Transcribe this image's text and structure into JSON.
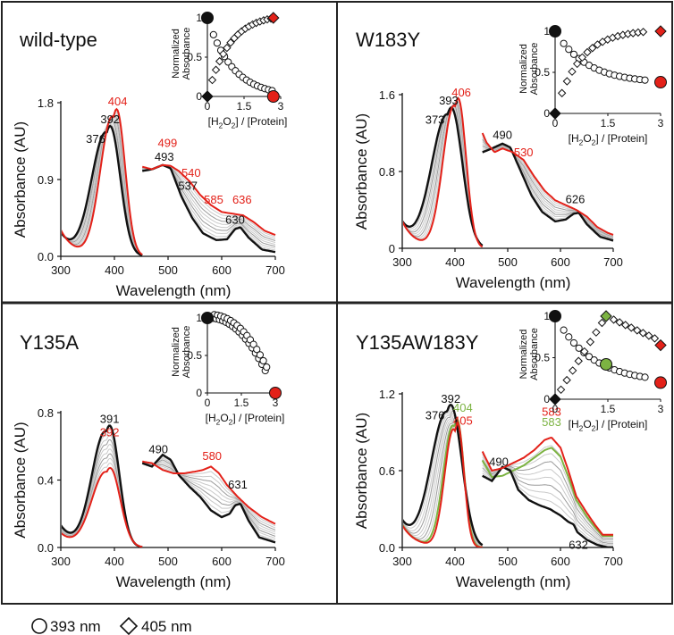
{
  "figure": {
    "legend": {
      "circle_label": "393 nm",
      "diamond_label": "405 nm"
    }
  },
  "colors": {
    "final": "#e32119",
    "initial": "#111111",
    "grey": "#9a9a9a",
    "light": "#c9c9c9",
    "green": "#7cb342"
  },
  "chart_data": [
    {
      "id": "wt",
      "title": "wild-type",
      "type": "line",
      "ylabel": "Absorbance (AU)",
      "xlabel": "Wavelength (nm)",
      "xlim": [
        300,
        700
      ],
      "ylim": [
        0,
        1.8
      ],
      "xticks": [
        "300",
        "400",
        "500",
        "600",
        "700"
      ],
      "yticks": [
        "0.0",
        "0.9",
        "1.8"
      ],
      "soret_initial": {
        "peak": 392,
        "height": 1.52,
        "width": 19,
        "shoulder": 376
      },
      "soret_final": {
        "peak": 404,
        "height": 1.72,
        "width": 16
      },
      "visible_initial": [
        [
          452,
          1.0
        ],
        [
          470,
          1.02
        ],
        [
          490,
          1.07
        ],
        [
          505,
          1.03
        ],
        [
          525,
          0.7
        ],
        [
          545,
          0.45
        ],
        [
          565,
          0.27
        ],
        [
          590,
          0.19
        ],
        [
          610,
          0.2
        ],
        [
          625,
          0.32
        ],
        [
          635,
          0.34
        ],
        [
          650,
          0.22
        ],
        [
          675,
          0.08
        ],
        [
          700,
          0.05
        ]
      ],
      "visible_final": [
        [
          452,
          1.05
        ],
        [
          470,
          1.02
        ],
        [
          490,
          1.07
        ],
        [
          505,
          1.06
        ],
        [
          520,
          1.0
        ],
        [
          540,
          0.88
        ],
        [
          560,
          0.72
        ],
        [
          580,
          0.6
        ],
        [
          600,
          0.52
        ],
        [
          620,
          0.5
        ],
        [
          640,
          0.48
        ],
        [
          660,
          0.4
        ],
        [
          680,
          0.3
        ],
        [
          700,
          0.25
        ]
      ],
      "labels_black": [
        {
          "text": "392",
          "x": 392,
          "y": 1.56
        },
        {
          "text": "376",
          "x": 365,
          "y": 1.33
        },
        {
          "text": "493",
          "x": 493,
          "y": 1.12
        },
        {
          "text": "537",
          "x": 537,
          "y": 0.78
        },
        {
          "text": "630",
          "x": 625,
          "y": 0.38
        }
      ],
      "labels_red": [
        {
          "text": "404",
          "x": 406,
          "y": 1.77
        },
        {
          "text": "499",
          "x": 499,
          "y": 1.28
        },
        {
          "text": "540",
          "x": 543,
          "y": 0.93
        },
        {
          "text": "585",
          "x": 585,
          "y": 0.62
        },
        {
          "text": "636",
          "x": 638,
          "y": 0.62
        }
      ],
      "inset": {
        "xlabel": "[H2O2] / [Protein]",
        "ylabel": "Normalized Absorbance",
        "xlim": [
          0,
          3
        ],
        "ylim": [
          0,
          1
        ],
        "xticks": [
          "0",
          "1.5",
          "3"
        ],
        "yticks": [
          "0",
          "0.5",
          "1"
        ],
        "circle_decay": {
          "k": 0.9,
          "end": 0.0
        },
        "diamond_rise": {
          "k": 0.9,
          "end": 1.0
        },
        "points_max": 2.7,
        "circle_start": [
          0,
          1.0
        ],
        "circle_end": [
          2.7,
          0.0
        ],
        "diamond_start": [
          0,
          0.0
        ],
        "diamond_end": [
          2.7,
          1.0
        ]
      }
    },
    {
      "id": "w183y",
      "title": "W183Y",
      "type": "line",
      "ylabel": "Absorbance (AU)",
      "xlabel": "Wavelength (nm)",
      "xlim": [
        300,
        700
      ],
      "ylim": [
        0,
        1.6
      ],
      "xticks": [
        "300",
        "400",
        "500",
        "600",
        "700"
      ],
      "yticks": [
        "0",
        "0.8",
        "1.6"
      ],
      "soret_initial": {
        "peak": 393,
        "height": 1.46,
        "width": 21,
        "shoulder": 373
      },
      "soret_final": {
        "peak": 406,
        "height": 1.56,
        "width": 15
      },
      "visible_initial": [
        [
          452,
          1.0
        ],
        [
          470,
          1.04
        ],
        [
          490,
          1.09
        ],
        [
          505,
          1.05
        ],
        [
          525,
          0.8
        ],
        [
          545,
          0.55
        ],
        [
          565,
          0.38
        ],
        [
          590,
          0.28
        ],
        [
          610,
          0.3
        ],
        [
          625,
          0.36
        ],
        [
          635,
          0.37
        ],
        [
          650,
          0.25
        ],
        [
          675,
          0.12
        ],
        [
          700,
          0.08
        ]
      ],
      "visible_final": [
        [
          452,
          1.2
        ],
        [
          460,
          1.1
        ],
        [
          475,
          1.0
        ],
        [
          490,
          1.04
        ],
        [
          510,
          1.0
        ],
        [
          530,
          0.92
        ],
        [
          550,
          0.75
        ],
        [
          570,
          0.6
        ],
        [
          590,
          0.5
        ],
        [
          610,
          0.45
        ],
        [
          630,
          0.4
        ],
        [
          650,
          0.33
        ],
        [
          670,
          0.22
        ],
        [
          690,
          0.16
        ],
        [
          700,
          0.14
        ]
      ],
      "labels_black": [
        {
          "text": "393",
          "x": 388,
          "y": 1.5
        },
        {
          "text": "373",
          "x": 362,
          "y": 1.3
        },
        {
          "text": "490",
          "x": 490,
          "y": 1.14
        },
        {
          "text": "626",
          "x": 628,
          "y": 0.47
        }
      ],
      "labels_red": [
        {
          "text": "406",
          "x": 412,
          "y": 1.58
        },
        {
          "text": "530",
          "x": 530,
          "y": 0.96
        }
      ],
      "inset": {
        "xlabel": "[H2O2] / [Protein]",
        "ylabel": "Normalized Absorbance",
        "xlim": [
          0,
          3
        ],
        "ylim": [
          0,
          1
        ],
        "xticks": [
          "0",
          "1.5",
          "3"
        ],
        "yticks": [
          "0",
          "0.5",
          "1"
        ],
        "circle_decay": {
          "k": 0.8,
          "end": 0.37
        },
        "diamond_rise": {
          "k": 0.7,
          "end": 1.0
        },
        "points_max": 2.6,
        "circle_start": [
          0,
          1.0
        ],
        "circle_end": [
          3.0,
          0.38
        ],
        "diamond_start": [
          0,
          0.0
        ],
        "diamond_end": [
          3.0,
          1.0
        ]
      }
    },
    {
      "id": "y135a",
      "title": "Y135A",
      "type": "line",
      "ylabel": "Absorbance (AU)",
      "xlabel": "Wavelength (nm)",
      "xlim": [
        300,
        700
      ],
      "ylim": [
        0,
        0.8
      ],
      "xticks": [
        "300",
        "400",
        "500",
        "600",
        "700"
      ],
      "yticks": [
        "0.0",
        "0.4",
        "0.8"
      ],
      "soret_initial": {
        "peak": 391,
        "height": 0.72,
        "width": 18,
        "shoulder": 0
      },
      "soret_final": {
        "peak": 392,
        "height": 0.47,
        "width": 19
      },
      "visible_initial": [
        [
          452,
          0.5
        ],
        [
          470,
          0.48
        ],
        [
          490,
          0.55
        ],
        [
          505,
          0.52
        ],
        [
          520,
          0.43
        ],
        [
          540,
          0.36
        ],
        [
          560,
          0.3
        ],
        [
          580,
          0.22
        ],
        [
          600,
          0.18
        ],
        [
          615,
          0.2
        ],
        [
          625,
          0.25
        ],
        [
          635,
          0.26
        ],
        [
          650,
          0.16
        ],
        [
          670,
          0.06
        ],
        [
          700,
          0.03
        ]
      ],
      "visible_final": [
        [
          452,
          0.51
        ],
        [
          470,
          0.5
        ],
        [
          490,
          0.46
        ],
        [
          510,
          0.44
        ],
        [
          530,
          0.44
        ],
        [
          550,
          0.45
        ],
        [
          565,
          0.46
        ],
        [
          580,
          0.48
        ],
        [
          595,
          0.44
        ],
        [
          610,
          0.37
        ],
        [
          630,
          0.3
        ],
        [
          650,
          0.24
        ],
        [
          675,
          0.18
        ],
        [
          700,
          0.14
        ]
      ],
      "labels_black": [
        {
          "text": "391",
          "x": 391,
          "y": 0.74
        },
        {
          "text": "490",
          "x": 482,
          "y": 0.56
        },
        {
          "text": "631",
          "x": 630,
          "y": 0.35
        }
      ],
      "labels_red": [
        {
          "text": "392",
          "x": 391,
          "y": 0.66
        },
        {
          "text": "580",
          "x": 582,
          "y": 0.52
        }
      ],
      "inset": {
        "xlabel": "[H2O2] / [Protein]",
        "ylabel": "Normalized Absorbance",
        "xlim": [
          0,
          3
        ],
        "ylim": [
          0,
          1
        ],
        "xticks": [
          "0",
          "1.5",
          "3"
        ],
        "yticks": [
          "0",
          "0.5",
          "1"
        ],
        "circle_decay": {
          "k": 0.35,
          "end": 0.0
        },
        "points_max": 2.6,
        "circle_start": [
          0,
          1.0
        ],
        "circle_end": [
          3.0,
          0.0
        ]
      }
    },
    {
      "id": "y135aw183y",
      "title": "Y135AW183Y",
      "type": "line",
      "ylabel": "Absorbance (AU)",
      "xlabel": "Wavelength (nm)",
      "xlim": [
        300,
        700
      ],
      "ylim": [
        0,
        1.2
      ],
      "xticks": [
        "300",
        "400",
        "500",
        "600",
        "700"
      ],
      "yticks": [
        "0.0",
        "0.6",
        "1.2"
      ],
      "soret_initial": {
        "peak": 392,
        "height": 1.11,
        "width": 21,
        "shoulder": 376
      },
      "soret_final": {
        "peak": 405,
        "height": 0.97,
        "width": 12
      },
      "soret_green": {
        "peak": 404,
        "height": 1.0,
        "width": 13
      },
      "visible_initial": [
        [
          452,
          0.56
        ],
        [
          470,
          0.52
        ],
        [
          490,
          0.63
        ],
        [
          505,
          0.6
        ],
        [
          520,
          0.45
        ],
        [
          540,
          0.37
        ],
        [
          560,
          0.33
        ],
        [
          580,
          0.3
        ],
        [
          600,
          0.25
        ],
        [
          615,
          0.2
        ],
        [
          625,
          0.18
        ],
        [
          632,
          0.12
        ],
        [
          650,
          0.06
        ],
        [
          670,
          0.02
        ],
        [
          690,
          0.0
        ]
      ],
      "visible_final": [
        [
          452,
          0.75
        ],
        [
          470,
          0.6
        ],
        [
          490,
          0.62
        ],
        [
          510,
          0.66
        ],
        [
          530,
          0.7
        ],
        [
          550,
          0.76
        ],
        [
          570,
          0.84
        ],
        [
          583,
          0.86
        ],
        [
          600,
          0.78
        ],
        [
          615,
          0.6
        ],
        [
          630,
          0.4
        ],
        [
          650,
          0.27
        ],
        [
          665,
          0.18
        ],
        [
          680,
          0.1
        ]
      ],
      "visible_green": [
        [
          452,
          0.68
        ],
        [
          470,
          0.55
        ],
        [
          490,
          0.56
        ],
        [
          510,
          0.6
        ],
        [
          530,
          0.64
        ],
        [
          550,
          0.7
        ],
        [
          570,
          0.76
        ],
        [
          583,
          0.78
        ],
        [
          600,
          0.71
        ],
        [
          615,
          0.55
        ],
        [
          630,
          0.37
        ],
        [
          650,
          0.24
        ],
        [
          665,
          0.16
        ],
        [
          680,
          0.09
        ]
      ],
      "labels_black": [
        {
          "text": "392",
          "x": 392,
          "y": 1.13
        },
        {
          "text": "376",
          "x": 362,
          "y": 1.0
        },
        {
          "text": "490",
          "x": 483,
          "y": 0.64
        },
        {
          "text": "632",
          "x": 634,
          "y": -0.01
        }
      ],
      "labels_red": [
        {
          "text": "405",
          "x": 415,
          "y": 0.96
        },
        {
          "text": "583",
          "x": 583,
          "y": 1.03
        }
      ],
      "labels_green": [
        {
          "text": "404",
          "x": 415,
          "y": 1.06
        },
        {
          "text": "583",
          "x": 583,
          "y": 0.95
        }
      ],
      "inset": {
        "xlabel": "[H2O2] / [Protein]",
        "ylabel": "Normalized Absorbance",
        "xlim": [
          0,
          3
        ],
        "ylim": [
          0,
          1
        ],
        "xticks": [
          "0",
          "1.5",
          "3"
        ],
        "yticks": [
          "0",
          "0.5",
          "1"
        ],
        "circle_decay": {
          "k": 0.9,
          "end": 0.2
        },
        "diamond_peak": {
          "x": 1.45,
          "y": 1.0,
          "end": 0.7
        },
        "points_max": 2.6,
        "circle_start": [
          0,
          1.0
        ],
        "circle_end": [
          3.0,
          0.2
        ],
        "circle_green": [
          1.45,
          0.42
        ],
        "diamond_start": [
          0,
          0.0
        ],
        "diamond_green": [
          1.45,
          1.0
        ],
        "diamond_end": [
          3.0,
          0.65
        ]
      }
    }
  ]
}
